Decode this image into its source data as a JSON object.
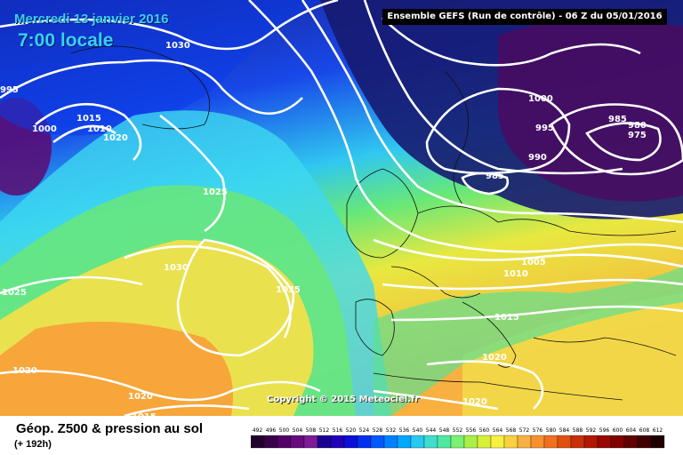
{
  "header": {
    "date": "Mercredi 13 janvier 2016",
    "time": "7:00 locale",
    "run": "Ensemble GEFS  (Run de contrôle)  -  06 Z du 05/01/2016"
  },
  "copyright": "Copyright © 2015 Meteociel.fr",
  "legend": {
    "title": "Géop. Z500 & pression au sol",
    "subtitle": "(+ 192h)",
    "scale_values": [
      "492",
      "496",
      "500",
      "504",
      "508",
      "512",
      "516",
      "520",
      "524",
      "528",
      "532",
      "536",
      "540",
      "544",
      "548",
      "552",
      "556",
      "560",
      "564",
      "568",
      "572",
      "576",
      "580",
      "584",
      "588",
      "592",
      "596",
      "600",
      "604",
      "608",
      "612"
    ],
    "scale_colors": [
      "#20002a",
      "#3a0048",
      "#520068",
      "#6a0a80",
      "#7e1a96",
      "#1a0090",
      "#2200b8",
      "#0a10d8",
      "#0030f0",
      "#0058ff",
      "#0080ff",
      "#00a8ff",
      "#28c8f0",
      "#40dccc",
      "#50e8a0",
      "#7cf070",
      "#a8f048",
      "#d8f038",
      "#f8f040",
      "#f8d040",
      "#f8b040",
      "#f89030",
      "#f07020",
      "#e05010",
      "#c83008",
      "#b01800",
      "#980800",
      "#800000",
      "#600000",
      "#400000",
      "#200000"
    ]
  },
  "isobars": [
    "1030",
    "995",
    "1000",
    "1015",
    "1010",
    "1020",
    "1025",
    "1030",
    "1035",
    "1025",
    "1020",
    "1020",
    "1015",
    "1000",
    "995",
    "990",
    "985",
    "985",
    "980",
    "975",
    "1005",
    "1010",
    "1015",
    "1020",
    "1020"
  ],
  "map_colors": {
    "deep_low": "#4a0a60",
    "dark_blue": "#141c8c",
    "blue": "#0a38e8",
    "cyan": "#3ed8f0",
    "green": "#6ae878",
    "yellow": "#f8e048",
    "orange": "#f8a038"
  }
}
